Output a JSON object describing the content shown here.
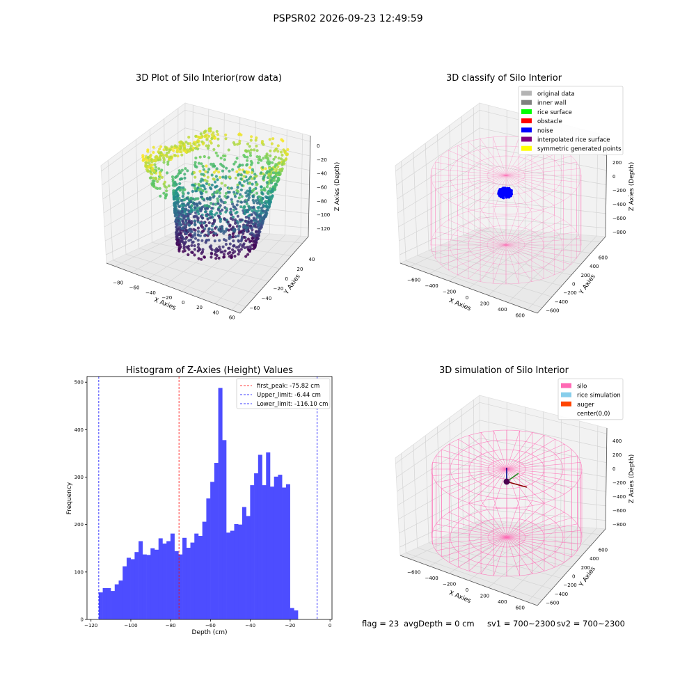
{
  "figure": {
    "suptitle": "PSPSR02 2026-09-23 12:49:59",
    "footer": {
      "flag": "flag = 23",
      "avg_depth": "avgDepth = 0 cm",
      "sv1": "sv1 = 700~2300",
      "sv2": "sv2 = 700~2300"
    }
  },
  "chart_data": [
    {
      "type": "scatter",
      "projection": "3d",
      "title": "3D Plot of Silo Interior(row data)",
      "xlabel": "X Axies",
      "ylabel": "Y Axies",
      "zlabel": "Z Axies (Depth)",
      "xticks": [
        "−80",
        "−60",
        "−40",
        "−20",
        "0",
        "20",
        "40",
        "60"
      ],
      "yticks": [
        "−60",
        "−40",
        "−20",
        "0",
        "20",
        "40"
      ],
      "zticks": [
        "0",
        "−20",
        "−40",
        "−60",
        "−80",
        "−100",
        "−120"
      ],
      "xlim": [
        -90,
        60
      ],
      "ylim": [
        -65,
        45
      ],
      "zlim": [
        -125,
        5
      ],
      "colormap": "viridis",
      "description_series": "point cloud colored by depth"
    },
    {
      "type": "scatter",
      "projection": "3d",
      "title": "3D classify of Silo Interior",
      "xlabel": "X Axies",
      "ylabel": "Y Axies",
      "zlabel": "Z Axies (Depth)",
      "xticks": [
        "−600",
        "−400",
        "−200",
        "0",
        "200",
        "400",
        "600"
      ],
      "yticks": [
        "−600",
        "−400",
        "−200",
        "0",
        "200",
        "400",
        "600"
      ],
      "zticks": [
        "400",
        "200",
        "0",
        "−200",
        "−400",
        "−600",
        "−800"
      ],
      "legend": [
        {
          "label": "original data",
          "color": "#b4b4b4"
        },
        {
          "label": "inner wall",
          "color": "#808080"
        },
        {
          "label": "rice surface",
          "color": "#00ff00"
        },
        {
          "label": "obstacle",
          "color": "#ff0000"
        },
        {
          "label": "noise",
          "color": "#0000ff"
        },
        {
          "label": "interpolated rice surface",
          "color": "#800080"
        },
        {
          "label": "symmetric generated points",
          "color": "#ffff00"
        }
      ],
      "legend_loc": "upper right"
    },
    {
      "type": "bar",
      "title": "Histogram of Z-Axies (Height) Values",
      "xlabel": "Depth (cm)",
      "ylabel": "Frequency",
      "xlim": [
        -122,
        1
      ],
      "ylim": [
        0,
        512
      ],
      "xticks": [
        -120,
        -100,
        -80,
        -60,
        -40,
        -20,
        0
      ],
      "yticks": [
        0,
        100,
        200,
        300,
        400,
        500
      ],
      "xtick_labels": [
        "−120",
        "−100",
        "−80",
        "−60",
        "−40",
        "−20",
        "0"
      ],
      "bins_start": -116.1,
      "bin_width": 2.0,
      "color": "#4d4dff",
      "values": [
        57,
        66,
        66,
        60,
        74,
        82,
        112,
        130,
        127,
        142,
        165,
        137,
        136,
        150,
        147,
        171,
        160,
        165,
        181,
        144,
        137,
        172,
        151,
        162,
        181,
        176,
        206,
        255,
        290,
        330,
        488,
        378,
        183,
        187,
        201,
        200,
        237,
        218,
        283,
        308,
        347,
        283,
        352,
        280,
        301,
        305,
        278,
        285,
        24,
        19
      ],
      "vlines": [
        {
          "label": "first_peak: -75.82 cm",
          "x": -75.82,
          "color": "#ff0000"
        },
        {
          "label": "Upper_limit: -6.44 cm",
          "x": -6.44,
          "color": "#0000ff"
        },
        {
          "label": "Lower_limit: -116.10 cm",
          "x": -116.1,
          "color": "#0000ff"
        }
      ]
    },
    {
      "type": "scatter",
      "projection": "3d",
      "title": "3D simulation of Silo Interior",
      "xlabel": "X Axies",
      "ylabel": "Y Axies",
      "zlabel": "Z Axies (Depth)",
      "xticks": [
        "−600",
        "−400",
        "−200",
        "0",
        "200",
        "400",
        "600"
      ],
      "yticks": [
        "−600",
        "−400",
        "−200",
        "0",
        "200",
        "400",
        "600"
      ],
      "zticks": [
        "400",
        "200",
        "0",
        "−200",
        "−400",
        "−600",
        "−800"
      ],
      "legend": [
        {
          "label": "silo",
          "color": "#ff69b4"
        },
        {
          "label": "rice simulation",
          "color": "#87ceeb"
        },
        {
          "label": "auger",
          "color": "#ff4500"
        },
        {
          "label": "center(0,0)",
          "color": "#ffffff"
        }
      ],
      "legend_loc": "upper right"
    }
  ]
}
